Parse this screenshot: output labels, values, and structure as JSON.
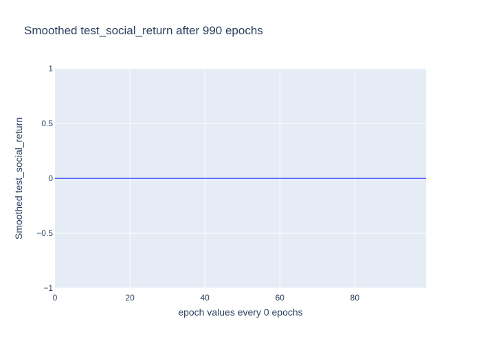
{
  "chart_data": {
    "type": "line",
    "title": "Smoothed test_social_return after 990 epochs",
    "xlabel": "epoch values every 0 epochs",
    "ylabel": "Smoothed test_social_return",
    "xlim": [
      0,
      99
    ],
    "ylim": [
      -1,
      1
    ],
    "x_ticks": [
      0,
      20,
      40,
      60,
      80
    ],
    "y_ticks": [
      -1,
      -0.5,
      0,
      0.5,
      1
    ],
    "y_tick_labels": [
      "−1",
      "−0.5",
      "0",
      "0.5",
      "1"
    ],
    "grid": true,
    "series": [
      {
        "x": [
          0,
          99
        ],
        "y": [
          0,
          0
        ],
        "color": "#636efa"
      }
    ]
  },
  "colors": {
    "plot_background": "#e5ecf6",
    "grid": "#ffffff",
    "text": "#2a3f5f",
    "line": "#636efa"
  }
}
